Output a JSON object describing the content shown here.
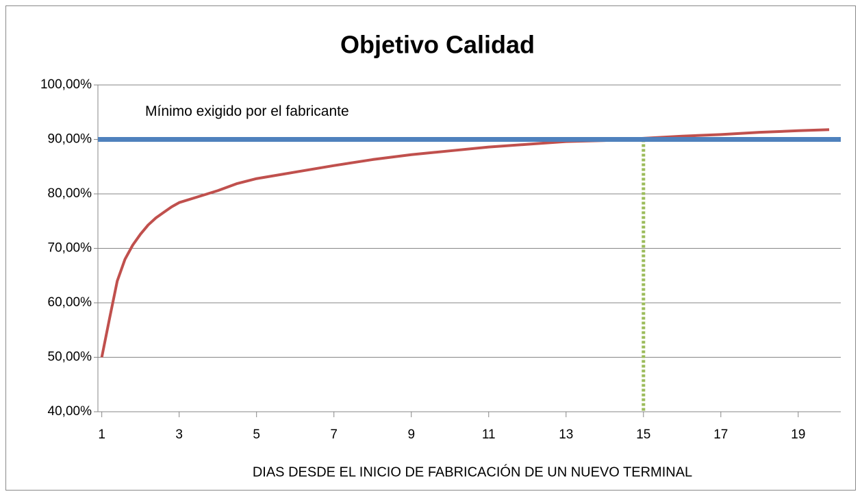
{
  "chart_data": {
    "type": "line",
    "title": "Objetivo Calidad",
    "x_label": "DIAS DESDE EL INICIO DE FABRICACIÓN DE UN NUEVO TERMINAL",
    "x": [
      1,
      1.2,
      1.4,
      1.6,
      1.8,
      2,
      2.2,
      2.4,
      2.6,
      2.8,
      3,
      3.5,
      4,
      4.5,
      5,
      6,
      7,
      8,
      9,
      10,
      11,
      12,
      13,
      14,
      15,
      16,
      17,
      18,
      19,
      19.8
    ],
    "series": [
      {
        "color": "#c0504d",
        "values": [
          50.0,
          57.1,
          64.0,
          68.0,
          70.6,
          72.6,
          74.3,
          75.6,
          76.6,
          77.6,
          78.4,
          79.5,
          80.6,
          81.9,
          82.8,
          84.0,
          85.2,
          86.3,
          87.2,
          87.9,
          88.6,
          89.1,
          89.6,
          89.8,
          90.2,
          90.6,
          90.9,
          91.3,
          91.6,
          91.8
        ]
      }
    ],
    "reference_lines": [
      {
        "value": 90,
        "color": "#4f81bd",
        "label": "Mínimo exigido por el fabricante"
      }
    ],
    "vertical_lines": [
      {
        "x": 15,
        "from": 90,
        "color": "#9bbb59"
      }
    ],
    "xlim": [
      0.9,
      20.1
    ],
    "xticks": [
      1,
      3,
      5,
      7,
      9,
      11,
      13,
      15,
      17,
      19
    ],
    "ylim": [
      40,
      100
    ],
    "yticks": [
      {
        "value": 40,
        "label": "40,00%"
      },
      {
        "value": 50,
        "label": "50,00%"
      },
      {
        "value": 60,
        "label": "60,00%"
      },
      {
        "value": 70,
        "label": "70,00%"
      },
      {
        "value": 80,
        "label": "80,00%"
      },
      {
        "value": 90,
        "label": "90,00%"
      },
      {
        "value": 100,
        "label": "100,00%"
      }
    ],
    "grid": true
  }
}
